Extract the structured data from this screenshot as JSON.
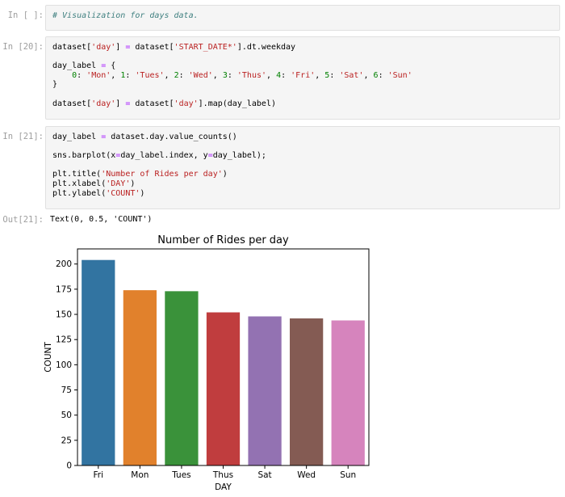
{
  "cells": [
    {
      "prompt": "In [ ]:",
      "lines": [
        [
          {
            "t": "# Visualization for days data.",
            "c": "t-comment"
          }
        ]
      ]
    },
    {
      "prompt": "In [20]:",
      "lines": [
        [
          {
            "t": "dataset[",
            "c": "t-name"
          },
          {
            "t": "'day'",
            "c": "t-str"
          },
          {
            "t": "] ",
            "c": "t-name"
          },
          {
            "t": "=",
            "c": "t-op"
          },
          {
            "t": " dataset[",
            "c": "t-name"
          },
          {
            "t": "'START_DATE*'",
            "c": "t-str"
          },
          {
            "t": "].dt.weekday",
            "c": "t-name"
          }
        ],
        [],
        [
          {
            "t": "day_label ",
            "c": "t-name"
          },
          {
            "t": "=",
            "c": "t-op"
          },
          {
            "t": " {",
            "c": "t-name"
          }
        ],
        [
          {
            "t": "    ",
            "c": "t-name"
          },
          {
            "t": "0",
            "c": "t-num"
          },
          {
            "t": ": ",
            "c": "t-name"
          },
          {
            "t": "'Mon'",
            "c": "t-str"
          },
          {
            "t": ", ",
            "c": "t-name"
          },
          {
            "t": "1",
            "c": "t-num"
          },
          {
            "t": ": ",
            "c": "t-name"
          },
          {
            "t": "'Tues'",
            "c": "t-str"
          },
          {
            "t": ", ",
            "c": "t-name"
          },
          {
            "t": "2",
            "c": "t-num"
          },
          {
            "t": ": ",
            "c": "t-name"
          },
          {
            "t": "'Wed'",
            "c": "t-str"
          },
          {
            "t": ", ",
            "c": "t-name"
          },
          {
            "t": "3",
            "c": "t-num"
          },
          {
            "t": ": ",
            "c": "t-name"
          },
          {
            "t": "'Thus'",
            "c": "t-str"
          },
          {
            "t": ", ",
            "c": "t-name"
          },
          {
            "t": "4",
            "c": "t-num"
          },
          {
            "t": ": ",
            "c": "t-name"
          },
          {
            "t": "'Fri'",
            "c": "t-str"
          },
          {
            "t": ", ",
            "c": "t-name"
          },
          {
            "t": "5",
            "c": "t-num"
          },
          {
            "t": ": ",
            "c": "t-name"
          },
          {
            "t": "'Sat'",
            "c": "t-str"
          },
          {
            "t": ", ",
            "c": "t-name"
          },
          {
            "t": "6",
            "c": "t-num"
          },
          {
            "t": ": ",
            "c": "t-name"
          },
          {
            "t": "'Sun'",
            "c": "t-str"
          }
        ],
        [
          {
            "t": "}",
            "c": "t-name"
          }
        ],
        [],
        [
          {
            "t": "dataset[",
            "c": "t-name"
          },
          {
            "t": "'day'",
            "c": "t-str"
          },
          {
            "t": "] ",
            "c": "t-name"
          },
          {
            "t": "=",
            "c": "t-op"
          },
          {
            "t": " dataset[",
            "c": "t-name"
          },
          {
            "t": "'day'",
            "c": "t-str"
          },
          {
            "t": "].map(day_label)",
            "c": "t-name"
          }
        ]
      ]
    },
    {
      "prompt": "In [21]:",
      "lines": [
        [
          {
            "t": "day_label ",
            "c": "t-name"
          },
          {
            "t": "=",
            "c": "t-op"
          },
          {
            "t": " dataset.day.value_counts()",
            "c": "t-name"
          }
        ],
        [],
        [
          {
            "t": "sns.barplot(x",
            "c": "t-name"
          },
          {
            "t": "=",
            "c": "t-op"
          },
          {
            "t": "day_label.index, y",
            "c": "t-name"
          },
          {
            "t": "=",
            "c": "t-op"
          },
          {
            "t": "day_label);",
            "c": "t-name"
          }
        ],
        [],
        [
          {
            "t": "plt.title(",
            "c": "t-name"
          },
          {
            "t": "'Number of Rides per day'",
            "c": "t-str"
          },
          {
            "t": ")",
            "c": "t-name"
          }
        ],
        [
          {
            "t": "plt.xlabel(",
            "c": "t-name"
          },
          {
            "t": "'DAY'",
            "c": "t-str"
          },
          {
            "t": ")",
            "c": "t-name"
          }
        ],
        [
          {
            "t": "plt.ylabel(",
            "c": "t-name"
          },
          {
            "t": "'COUNT'",
            "c": "t-str"
          },
          {
            "t": ")",
            "c": "t-name"
          }
        ]
      ]
    }
  ],
  "output": {
    "prompt": "Out[21]:",
    "text": "Text(0, 0.5, 'COUNT')"
  },
  "chart_data": {
    "type": "bar",
    "title": "Number of Rides per day",
    "xlabel": "DAY",
    "ylabel": "COUNT",
    "categories": [
      "Fri",
      "Mon",
      "Tues",
      "Thus",
      "Sat",
      "Wed",
      "Sun"
    ],
    "values": [
      204,
      174,
      173,
      152,
      148,
      146,
      144
    ],
    "colors": [
      "#3274a1",
      "#e1812c",
      "#3a923a",
      "#c03d3e",
      "#9372b2",
      "#845b53",
      "#d684bd"
    ],
    "ylim": [
      0,
      215
    ],
    "yticks": [
      0,
      25,
      50,
      75,
      100,
      125,
      150,
      175,
      200
    ],
    "grid": false,
    "legend": "none"
  }
}
